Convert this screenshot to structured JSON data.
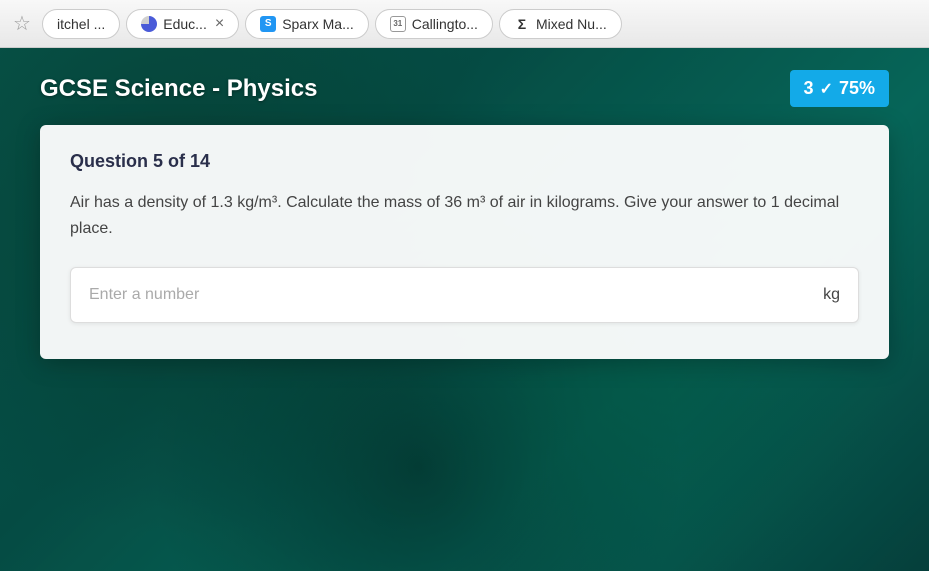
{
  "tabs": [
    {
      "label": "itchel ...",
      "icon": null,
      "closable": false
    },
    {
      "label": "Educ...",
      "icon": "pie",
      "closable": true
    },
    {
      "label": "Sparx Ma...",
      "icon": "s",
      "closable": false
    },
    {
      "label": "Callingto...",
      "icon": "cal",
      "closable": false
    },
    {
      "label": "Mixed Nu...",
      "icon": "sigma",
      "closable": false
    }
  ],
  "iconGlyphs": {
    "s": "S",
    "cal": "31",
    "sigma": "Σ"
  },
  "quiz": {
    "title": "GCSE Science - Physics",
    "score_count": "3",
    "score_percent": "75%",
    "progress": "Question 5 of 14",
    "question": "Air has a density of 1.3 kg/m³. Calculate the mass of 36 m³ of air in kilograms. Give your answer to 1 decimal place.",
    "placeholder": "Enter a number",
    "unit": "kg"
  },
  "colors": {
    "badge": "#1ea7e0",
    "bg_teal": "#0b5248"
  }
}
